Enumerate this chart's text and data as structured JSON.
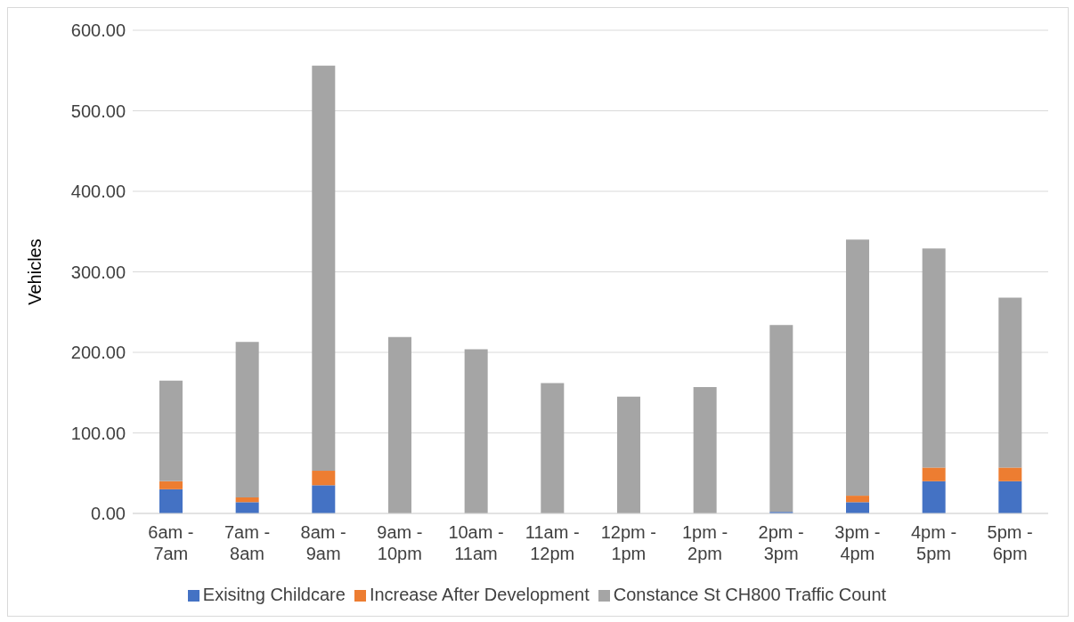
{
  "chart_data": {
    "type": "bar",
    "ylabel": "Vehicles",
    "stacked": true,
    "grid": "y",
    "legend": "bottom",
    "categories": [
      "6am - 7am",
      "7am - 8am",
      "8am - 9am",
      "9am - 10pm",
      "10am - 11am",
      "11am - 12pm",
      "12pm - 1pm",
      "1pm - 2pm",
      "2pm - 3pm",
      "3pm - 4pm",
      "4pm - 5pm",
      "5pm - 6pm"
    ],
    "ylim": [
      0,
      600
    ],
    "yticks": [
      {
        "value": 0,
        "label": "0.00"
      },
      {
        "value": 100,
        "label": "100.00"
      },
      {
        "value": 200,
        "label": "200.00"
      },
      {
        "value": 300,
        "label": "300.00"
      },
      {
        "value": 400,
        "label": "400.00"
      },
      {
        "value": 500,
        "label": "500.00"
      },
      {
        "value": 600,
        "label": "600.00"
      }
    ],
    "series": [
      {
        "name": "Exisitng Childcare",
        "color": "#4472c4",
        "values": [
          30,
          14,
          35,
          0,
          0,
          0,
          0,
          0,
          2,
          14,
          40,
          40
        ]
      },
      {
        "name": "Increase After Development",
        "color": "#ed7d31",
        "values": [
          10,
          6,
          18,
          0,
          0,
          0,
          0,
          0,
          0,
          8,
          17,
          17
        ]
      },
      {
        "name": "Constance St CH800 Traffic Count",
        "color": "#a5a5a5",
        "values": [
          125,
          193,
          503,
          219,
          204,
          162,
          145,
          157,
          232,
          318,
          272,
          211
        ]
      }
    ]
  }
}
